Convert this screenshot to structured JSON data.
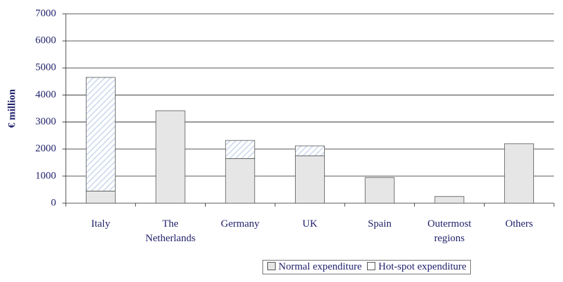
{
  "chart_data": {
    "type": "stacked_bar",
    "y_label": "€ million",
    "categories": [
      "Italy",
      "The Netherlands",
      "Germany",
      "UK",
      "Spain",
      "Outermost regions",
      "Others"
    ],
    "series": [
      {
        "name": "Normal expenditure",
        "color": "#e6e6e6",
        "values": [
          450,
          3420,
          1650,
          1750,
          950,
          250,
          2200
        ]
      },
      {
        "name": "Hot-spot expenditure",
        "color": "#c9d6ec",
        "pattern": "hatch",
        "values": [
          4200,
          0,
          670,
          370,
          0,
          0,
          0
        ]
      }
    ],
    "ylim": [
      0,
      7000
    ],
    "yticks": [
      0,
      1000,
      2000,
      3000,
      4000,
      5000,
      6000,
      7000
    ],
    "grid": true
  }
}
